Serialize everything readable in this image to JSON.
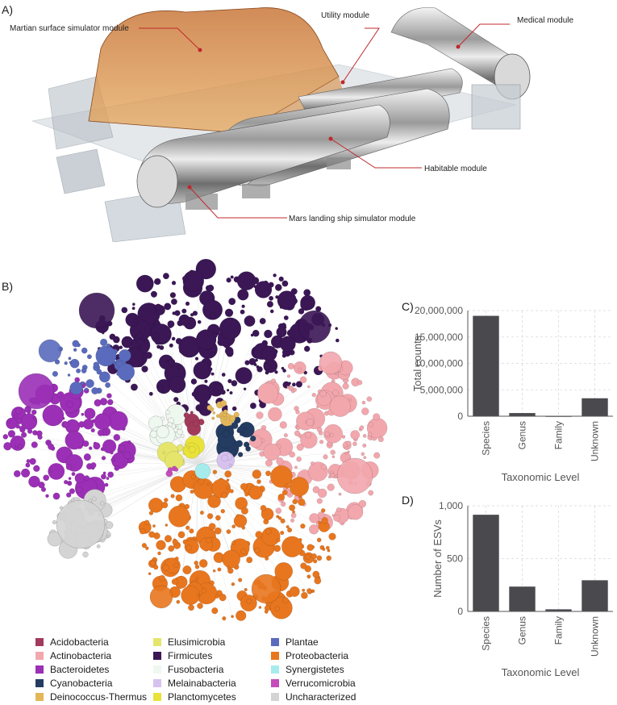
{
  "panel_a": {
    "letter": "A)",
    "callouts": {
      "martian": "Martian surface simulator module",
      "utility": "Utility module",
      "medical": "Medical module",
      "habitable": "Habitable module",
      "landing": "Mars landing ship simulator module"
    }
  },
  "panel_b": {
    "letter": "B)",
    "legend": [
      {
        "label": "Acidobacteria",
        "color": "#a23a5c"
      },
      {
        "label": "Actinobacteria",
        "color": "#f2a7ad"
      },
      {
        "label": "Bacteroidetes",
        "color": "#9b2fb6"
      },
      {
        "label": "Cyanobacteria",
        "color": "#243c62"
      },
      {
        "label": "Deinococcus-Thermus",
        "color": "#e3b759"
      },
      {
        "label": "Elusimicrobia",
        "color": "#e5e56c"
      },
      {
        "label": "Firmicutes",
        "color": "#3b1756"
      },
      {
        "label": "Fusobacteria",
        "color": "#eef8ef"
      },
      {
        "label": "Melainabacteria",
        "color": "#d6c2ef"
      },
      {
        "label": "Planctomycetes",
        "color": "#e8e23a"
      },
      {
        "label": "Plantae",
        "color": "#5a6bbd"
      },
      {
        "label": "Proteobacteria",
        "color": "#e8761e"
      },
      {
        "label": "Synergistetes",
        "color": "#a6ecec"
      },
      {
        "label": "Verrucomicrobia",
        "color": "#c44dbb"
      },
      {
        "label": "Uncharacterized",
        "color": "#d4d4d4"
      }
    ]
  },
  "chart_data": [
    {
      "panel": "C)",
      "type": "bar",
      "categories": [
        "Species",
        "Genus",
        "Family",
        "Unknown"
      ],
      "values": [
        19000000,
        600000,
        0,
        3400000
      ],
      "ylabel": "Total counts",
      "xlabel": "Taxonomic Level",
      "ylim": [
        0,
        20000000
      ],
      "yticks": [
        "0",
        "5,000,000",
        "10,000,000",
        "15,000,000",
        "20,000,000"
      ],
      "ytick_values": [
        0,
        5000000,
        10000000,
        15000000,
        20000000
      ],
      "grid": true,
      "bar_color": "#4a4a4e"
    },
    {
      "panel": "D)",
      "type": "bar",
      "categories": [
        "Species",
        "Genus",
        "Family",
        "Unknown"
      ],
      "values": [
        915,
        235,
        20,
        295
      ],
      "ylabel": "Number of ESVs",
      "xlabel": "Taxonomic Level",
      "ylim": [
        0,
        1000
      ],
      "yticks": [
        "0",
        "500",
        "1,000"
      ],
      "ytick_values": [
        0,
        500,
        1000
      ],
      "grid": true,
      "bar_color": "#4a4a4e"
    }
  ]
}
